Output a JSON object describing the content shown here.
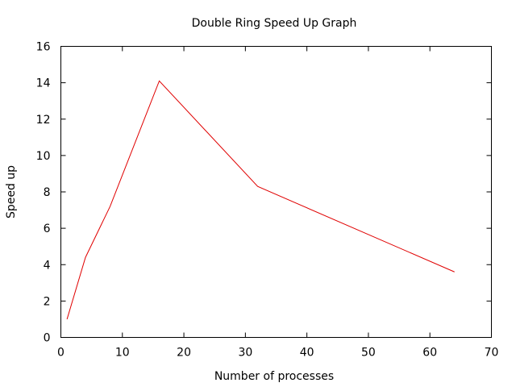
{
  "chart_data": {
    "type": "line",
    "title": "Double Ring Speed Up Graph",
    "xlabel": "Number of processes",
    "ylabel": "Speed up",
    "xlim": [
      0,
      70
    ],
    "ylim": [
      0,
      16
    ],
    "x_ticks": [
      0,
      10,
      20,
      30,
      40,
      50,
      60,
      70
    ],
    "y_ticks": [
      0,
      2,
      4,
      6,
      8,
      10,
      12,
      14,
      16
    ],
    "grid": false,
    "legend": "none",
    "series": [
      {
        "color": "#e00000",
        "x": [
          1,
          4,
          8,
          16,
          32,
          64
        ],
        "y": [
          1.0,
          4.4,
          7.2,
          14.1,
          8.3,
          3.6
        ]
      }
    ]
  }
}
